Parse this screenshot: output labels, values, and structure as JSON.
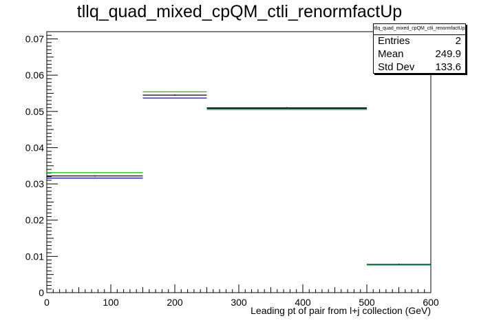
{
  "title": "tllq_quad_mixed_cpQM_ctli_renormfactUp",
  "stats": {
    "name": "tllq_quad_mixed_cpQM_ctli_renormfactUp",
    "rows": [
      {
        "label": "Entries",
        "value": "2"
      },
      {
        "label": "Mean",
        "value": "249.9"
      },
      {
        "label": "Std Dev",
        "value": "133.6"
      }
    ]
  },
  "chart_data": {
    "type": "line",
    "title": "tllq_quad_mixed_cpQM_ctli_renormfactUp",
    "xlabel": "Leading pt of pair from l+j collection (GeV)",
    "ylabel": "",
    "xlim": [
      0,
      600
    ],
    "ylim": [
      0,
      0.072
    ],
    "x_ticks": [
      0,
      100,
      200,
      300,
      400,
      500,
      600
    ],
    "x_tick_labels": [
      "0",
      "100",
      "200",
      "300",
      "400",
      "500",
      "600"
    ],
    "y_ticks": [
      0,
      0.01,
      0.02,
      0.03,
      0.04,
      0.05,
      0.06,
      0.07
    ],
    "y_tick_labels": [
      "0",
      "0.01",
      "0.02",
      "0.03",
      "0.04",
      "0.05",
      "0.06",
      "0.07"
    ],
    "bin_edges": [
      0,
      150,
      250,
      500,
      600
    ],
    "grid": false,
    "series": [
      {
        "color": "#000000",
        "values": [
          0.0322,
          0.0545,
          0.051,
          0.0078
        ]
      },
      {
        "color": "#0000cc",
        "values": [
          0.0316,
          0.0537,
          0.0508,
          0.0077
        ]
      },
      {
        "color": "#00cc00",
        "values": [
          0.0331,
          0.0554,
          0.0505,
          0.0076
        ]
      }
    ]
  }
}
